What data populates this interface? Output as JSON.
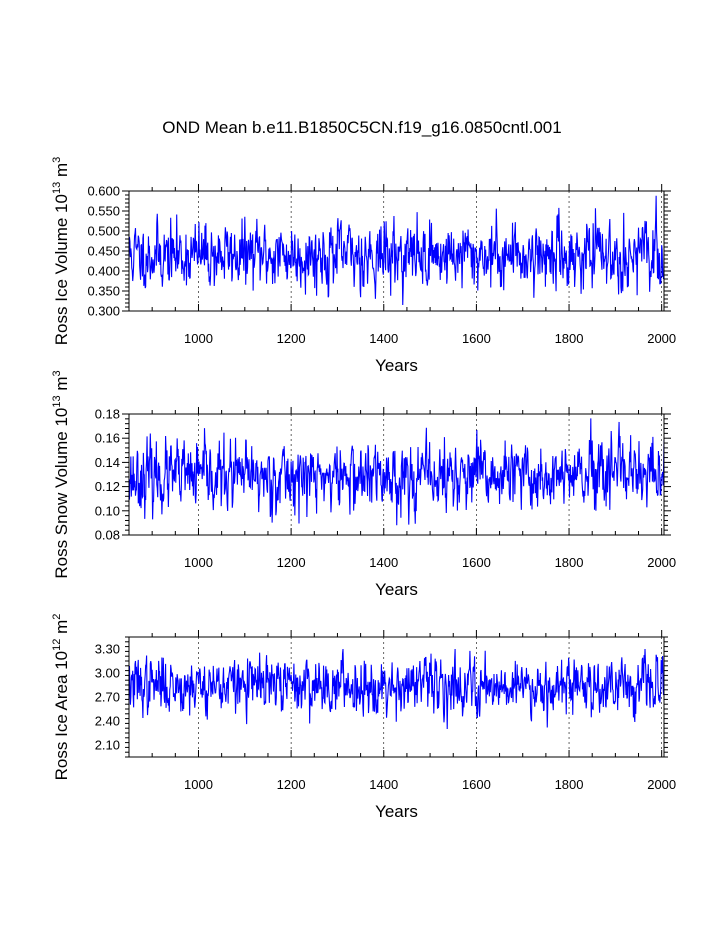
{
  "title": "OND Mean b.e11.B1850C5CN.f19_g16.0850cntl.001",
  "colors": {
    "series": "#0000ff",
    "axis": "#000000",
    "grid": "#000000"
  },
  "chart_data": [
    {
      "type": "line",
      "xlabel": "Years",
      "ylabel_text": "Ross Ice Volume 10",
      "ylabel_exp": "13",
      "ylabel_unit": "m",
      "ylabel_unit_exp": "3",
      "xlim": [
        850,
        2005
      ],
      "ylim": [
        0.3,
        0.6
      ],
      "xticks": [
        1000,
        1200,
        1400,
        1600,
        1800,
        2000
      ],
      "yticks": [
        "0.300",
        "0.350",
        "0.400",
        "0.450",
        "0.500",
        "0.550",
        "0.600"
      ],
      "series": [
        {
          "name": "Ross Ice Volume",
          "mean": 0.44,
          "spread": 0.038,
          "min": 0.315,
          "max": 0.598,
          "seed": 11
        }
      ]
    },
    {
      "type": "line",
      "xlabel": "Years",
      "ylabel_text": "Ross Snow Volume 10",
      "ylabel_exp": "13",
      "ylabel_unit": "m",
      "ylabel_unit_exp": "3",
      "xlim": [
        850,
        2005
      ],
      "ylim": [
        0.08,
        0.18
      ],
      "xticks": [
        1000,
        1200,
        1400,
        1600,
        1800,
        2000
      ],
      "yticks": [
        "0.08",
        "0.10",
        "0.12",
        "0.14",
        "0.16",
        "0.18"
      ],
      "series": [
        {
          "name": "Ross Snow Volume",
          "mean": 0.128,
          "spread": 0.013,
          "min": 0.085,
          "max": 0.178,
          "seed": 23
        }
      ]
    },
    {
      "type": "line",
      "xlabel": "Years",
      "ylabel_text": "Ross Ice Area 10",
      "ylabel_exp": "12",
      "ylabel_unit": "m",
      "ylabel_unit_exp": "2",
      "xlim": [
        850,
        2005
      ],
      "ylim": [
        1.95,
        3.45
      ],
      "xticks": [
        1000,
        1200,
        1400,
        1600,
        1800,
        2000
      ],
      "yticks": [
        "2.10",
        "2.40",
        "2.70",
        "3.00",
        "3.30"
      ],
      "series": [
        {
          "name": "Ross Ice Area",
          "mean": 2.85,
          "spread": 0.16,
          "min": 2.13,
          "max": 3.3,
          "seed": 37
        }
      ]
    }
  ]
}
